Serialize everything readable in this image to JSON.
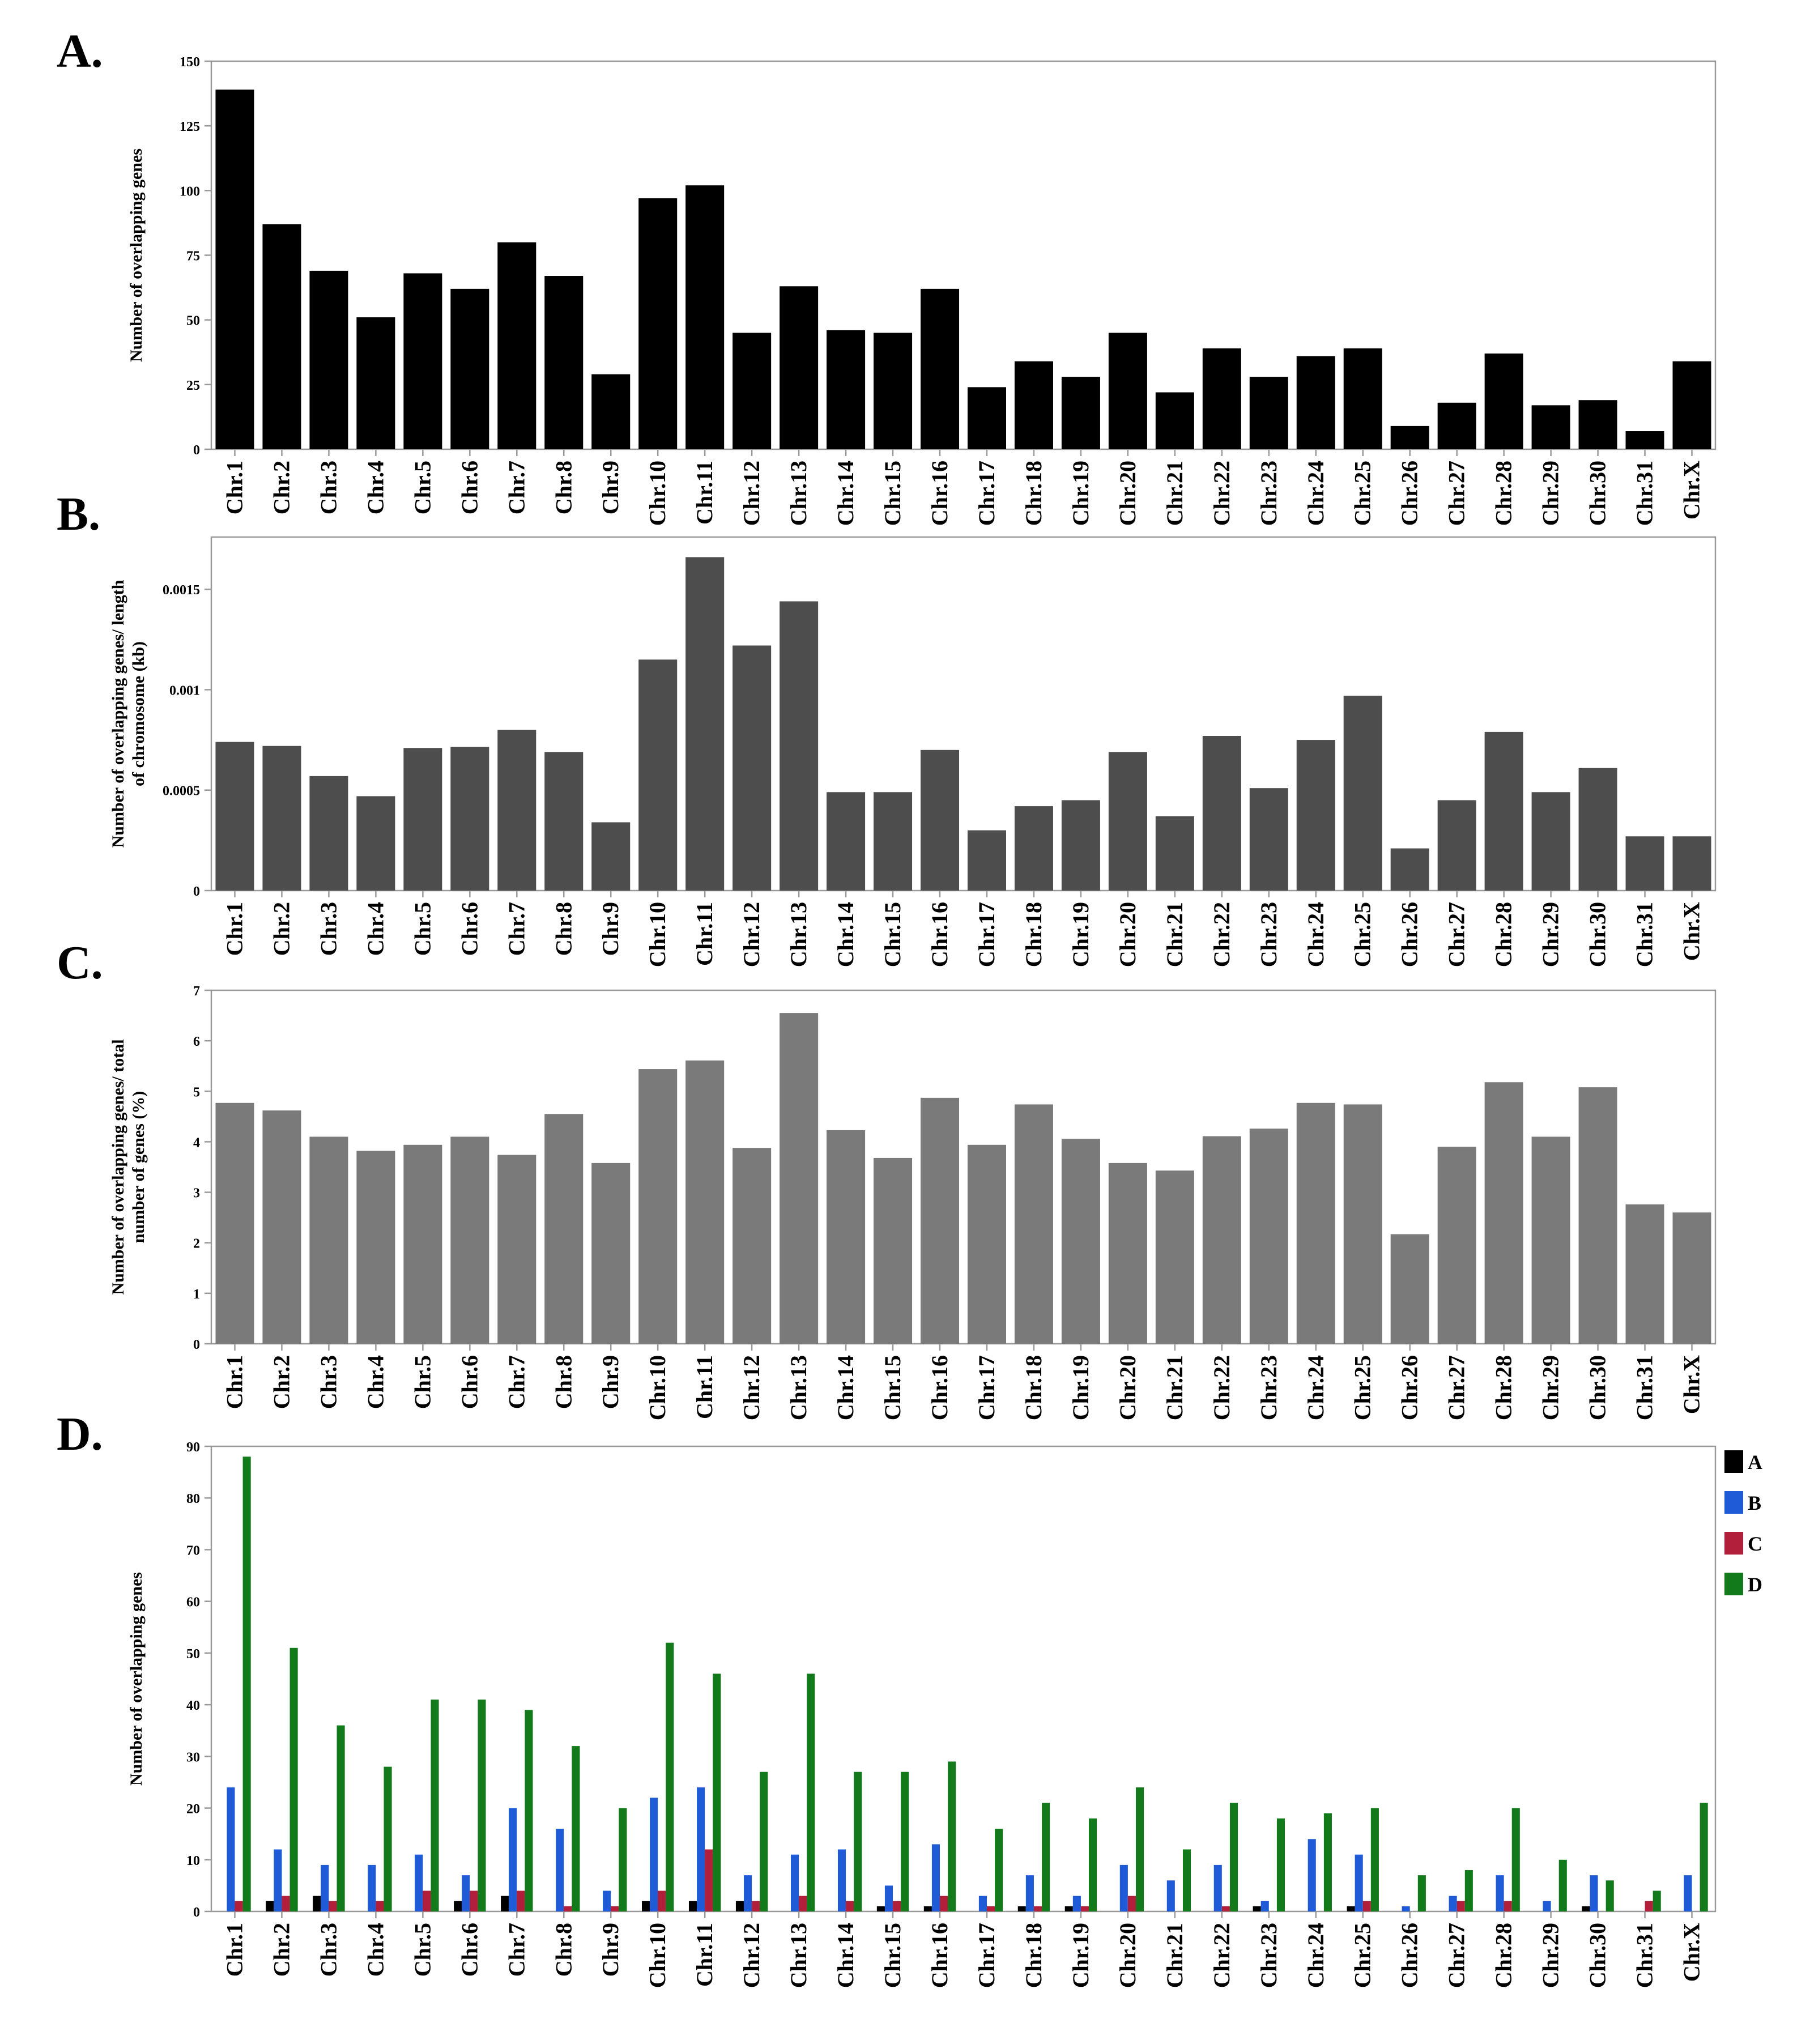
{
  "figure": {
    "colors": {
      "axis": "#9a9a9a",
      "panelA_bar": "#000000",
      "panelB_bar": "#4d4d4d",
      "panelC_bar": "#7a7a7a",
      "seriesA": "#000000",
      "seriesB": "#1f5bd6",
      "seriesC": "#b21f3a",
      "seriesD": "#137a1c"
    }
  },
  "chart_data": [
    {
      "panel": "A.",
      "type": "bar",
      "categories": [
        "Chr.1",
        "Chr.2",
        "Chr.3",
        "Chr.4",
        "Chr.5",
        "Chr.6",
        "Chr.7",
        "Chr.8",
        "Chr.9",
        "Chr.10",
        "Chr.11",
        "Chr.12",
        "Chr.13",
        "Chr.14",
        "Chr.15",
        "Chr.16",
        "Chr.17",
        "Chr.18",
        "Chr.19",
        "Chr.20",
        "Chr.21",
        "Chr.22",
        "Chr.23",
        "Chr.24",
        "Chr.25",
        "Chr.26",
        "Chr.27",
        "Chr.28",
        "Chr.29",
        "Chr.30",
        "Chr.31",
        "Chr.X"
      ],
      "values": [
        139,
        87,
        69,
        51,
        68,
        62,
        80,
        67,
        29,
        97,
        102,
        45,
        63,
        46,
        45,
        62,
        24,
        34,
        28,
        45,
        22,
        39,
        28,
        36,
        39,
        9,
        18,
        37,
        17,
        19,
        7,
        34
      ],
      "ylabel": "Number of overlapping genes",
      "ylim": [
        0,
        150
      ],
      "yticks": [
        0,
        25,
        50,
        75,
        100,
        125,
        150
      ],
      "ytick_labels": [
        "0",
        "25",
        "50",
        "75",
        "100",
        "125",
        "150"
      ]
    },
    {
      "panel": "B.",
      "type": "bar",
      "categories": [
        "Chr.1",
        "Chr.2",
        "Chr.3",
        "Chr.4",
        "Chr.5",
        "Chr.6",
        "Chr.7",
        "Chr.8",
        "Chr.9",
        "Chr.10",
        "Chr.11",
        "Chr.12",
        "Chr.13",
        "Chr.14",
        "Chr.15",
        "Chr.16",
        "Chr.17",
        "Chr.18",
        "Chr.19",
        "Chr.20",
        "Chr.21",
        "Chr.22",
        "Chr.23",
        "Chr.24",
        "Chr.25",
        "Chr.26",
        "Chr.27",
        "Chr.28",
        "Chr.29",
        "Chr.30",
        "Chr.31",
        "Chr.X"
      ],
      "values": [
        0.00074,
        0.00072,
        0.00057,
        0.00047,
        0.00071,
        0.000715,
        0.0008,
        0.00069,
        0.00034,
        0.00115,
        0.00166,
        0.00122,
        0.00144,
        0.00049,
        0.00049,
        0.0007,
        0.0003,
        0.00042,
        0.00045,
        0.00069,
        0.00037,
        0.00077,
        0.00051,
        0.00075,
        0.00097,
        0.00021,
        0.00045,
        0.00079,
        0.00049,
        0.00061,
        0.00027,
        0.00027
      ],
      "ylabel": "Number of overlapping genes/ length of chromosome (kb)",
      "ylabel_lines": [
        "Number of overlapping genes/ length",
        "of chromosome (kb)"
      ],
      "ylim": [
        0,
        0.00176
      ],
      "yticks": [
        0,
        0.0005,
        0.001,
        0.0015
      ],
      "ytick_labels": [
        "0",
        "0.0005",
        "0.001",
        "0.0015"
      ]
    },
    {
      "panel": "C.",
      "type": "bar",
      "categories": [
        "Chr.1",
        "Chr.2",
        "Chr.3",
        "Chr.4",
        "Chr.5",
        "Chr.6",
        "Chr.7",
        "Chr.8",
        "Chr.9",
        "Chr.10",
        "Chr.11",
        "Chr.12",
        "Chr.13",
        "Chr.14",
        "Chr.15",
        "Chr.16",
        "Chr.17",
        "Chr.18",
        "Chr.19",
        "Chr.20",
        "Chr.21",
        "Chr.22",
        "Chr.23",
        "Chr.24",
        "Chr.25",
        "Chr.26",
        "Chr.27",
        "Chr.28",
        "Chr.29",
        "Chr.30",
        "Chr.31",
        "Chr.X"
      ],
      "values": [
        4.77,
        4.62,
        4.1,
        3.82,
        3.94,
        4.1,
        3.74,
        4.55,
        3.58,
        5.44,
        5.61,
        3.88,
        6.55,
        4.23,
        3.68,
        4.87,
        3.94,
        4.74,
        4.06,
        3.58,
        3.43,
        4.11,
        4.26,
        4.77,
        4.74,
        2.17,
        3.9,
        5.18,
        4.1,
        5.08,
        2.76,
        2.6
      ],
      "ylabel": "Number of overlapping genes/ total number of genes (%)",
      "ylabel_lines": [
        "Number of overlapping genes/ total",
        "number of genes (%)"
      ],
      "ylim": [
        0,
        7
      ],
      "yticks": [
        0,
        1,
        2,
        3,
        4,
        5,
        6,
        7
      ],
      "ytick_labels": [
        "0",
        "1",
        "2",
        "3",
        "4",
        "5",
        "6",
        "7"
      ]
    },
    {
      "panel": "D.",
      "type": "bar",
      "categories": [
        "Chr.1",
        "Chr.2",
        "Chr.3",
        "Chr.4",
        "Chr.5",
        "Chr.6",
        "Chr.7",
        "Chr.8",
        "Chr.9",
        "Chr.10",
        "Chr.11",
        "Chr.12",
        "Chr.13",
        "Chr.14",
        "Chr.15",
        "Chr.16",
        "Chr.17",
        "Chr.18",
        "Chr.19",
        "Chr.20",
        "Chr.21",
        "Chr.22",
        "Chr.23",
        "Chr.24",
        "Chr.25",
        "Chr.26",
        "Chr.27",
        "Chr.28",
        "Chr.29",
        "Chr.30",
        "Chr.31",
        "Chr.X"
      ],
      "series": [
        {
          "name": "A",
          "values": [
            0,
            2,
            3,
            0,
            0,
            2,
            3,
            0,
            0,
            2,
            2,
            2,
            0,
            0,
            1,
            1,
            0,
            1,
            1,
            0,
            0,
            0,
            1,
            0,
            1,
            0,
            0,
            0,
            0,
            1,
            0,
            0
          ]
        },
        {
          "name": "B",
          "values": [
            24,
            12,
            9,
            9,
            11,
            7,
            20,
            16,
            4,
            22,
            24,
            7,
            11,
            12,
            5,
            13,
            3,
            7,
            3,
            9,
            6,
            9,
            2,
            14,
            11,
            1,
            3,
            7,
            2,
            7,
            0,
            7
          ]
        },
        {
          "name": "C",
          "values": [
            2,
            3,
            2,
            2,
            4,
            4,
            4,
            1,
            1,
            4,
            12,
            2,
            3,
            2,
            2,
            3,
            1,
            1,
            1,
            3,
            0,
            1,
            0,
            0,
            2,
            0,
            2,
            2,
            0,
            0,
            2,
            0
          ]
        },
        {
          "name": "D",
          "values": [
            88,
            51,
            36,
            28,
            41,
            41,
            39,
            32,
            20,
            52,
            46,
            27,
            46,
            27,
            27,
            29,
            16,
            21,
            18,
            24,
            12,
            21,
            18,
            19,
            20,
            7,
            8,
            20,
            10,
            6,
            4,
            21
          ]
        }
      ],
      "legend": [
        "A",
        "B",
        "C",
        "D"
      ],
      "legend_position": "top-right",
      "ylabel": "Number of overlapping genes",
      "ylim": [
        0,
        90
      ],
      "yticks": [
        0,
        10,
        20,
        30,
        40,
        50,
        60,
        70,
        80,
        90
      ],
      "ytick_labels": [
        "0",
        "10",
        "20",
        "30",
        "40",
        "50",
        "60",
        "70",
        "80",
        "90"
      ]
    }
  ]
}
